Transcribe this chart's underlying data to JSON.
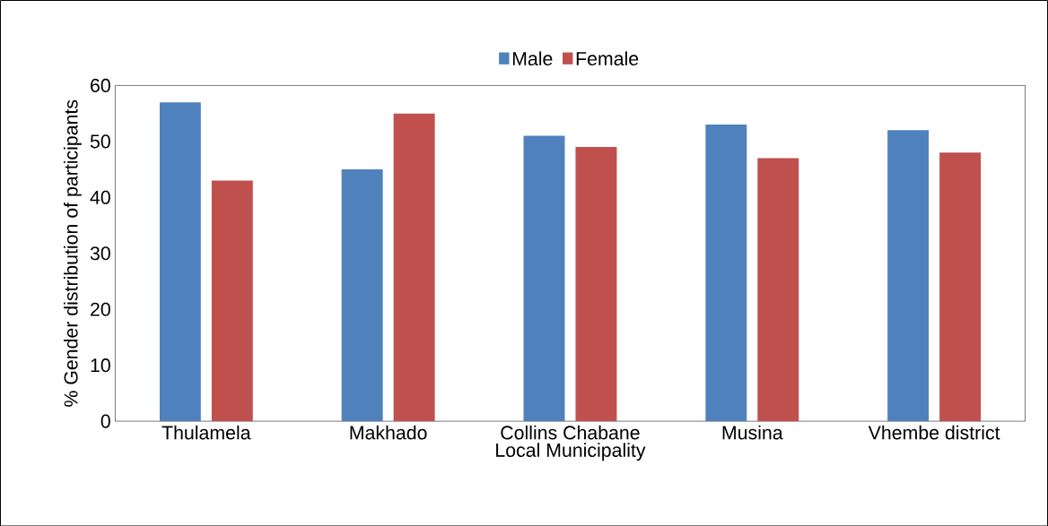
{
  "chart_data": {
    "type": "bar",
    "categories": [
      "Thulamela",
      "Makhado",
      "Collins Chabane",
      "Musina",
      "Vhembe district"
    ],
    "series": [
      {
        "name": "Male",
        "color": "#4f81bd",
        "values": [
          57,
          45,
          51,
          53,
          52
        ]
      },
      {
        "name": "Female",
        "color": "#c0504d",
        "values": [
          43,
          55,
          49,
          47,
          48
        ]
      }
    ],
    "ylim": [
      0,
      60
    ],
    "yticks": [
      0,
      10,
      20,
      30,
      40,
      50,
      60
    ],
    "xlabel": "Local Municipality",
    "ylabel": "% Gender  distribution of participants",
    "legend": "top"
  }
}
